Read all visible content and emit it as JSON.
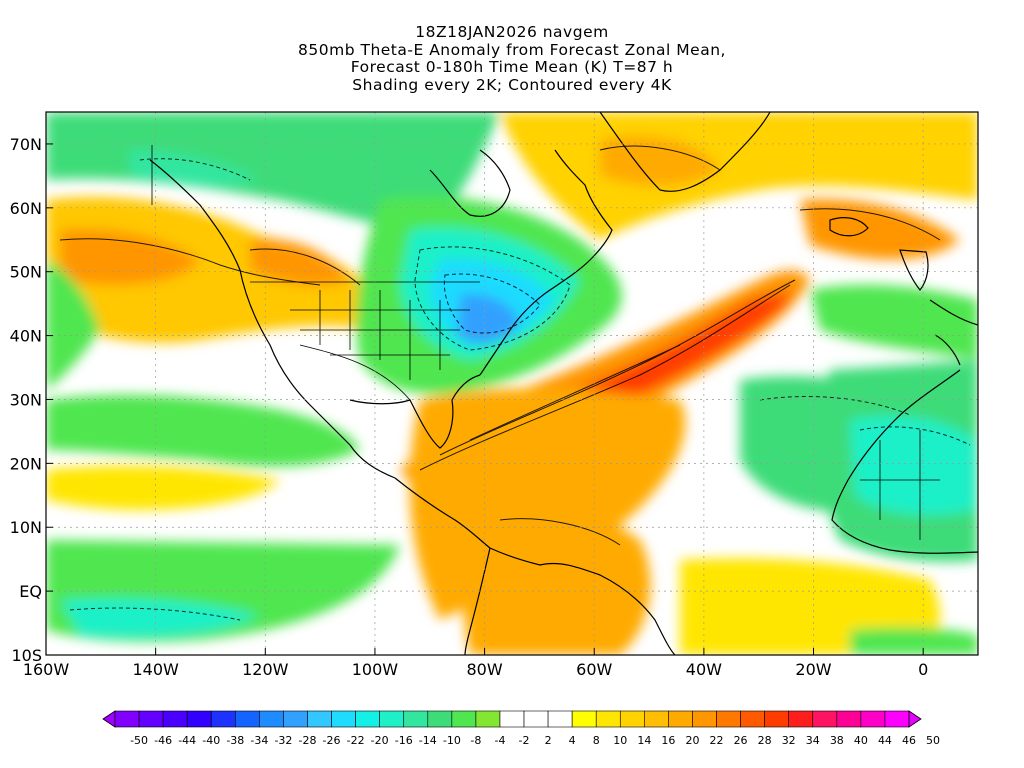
{
  "titles": {
    "line1": "18Z18JAN2026 navgem",
    "line2": "850mb Theta-E Anomaly from Forecast Zonal Mean,",
    "line3": "Forecast 0-180h Time Mean (K) T=87 h",
    "line4": "Shading every 2K; Contoured every 4K"
  },
  "map": {
    "lon_range": [
      -160,
      10
    ],
    "lat_range": [
      -10,
      75
    ],
    "lon_ticks": [
      {
        "value": -160,
        "label": "160W"
      },
      {
        "value": -140,
        "label": "140W"
      },
      {
        "value": -120,
        "label": "120W"
      },
      {
        "value": -100,
        "label": "100W"
      },
      {
        "value": -80,
        "label": "80W"
      },
      {
        "value": -60,
        "label": "60W"
      },
      {
        "value": -40,
        "label": "40W"
      },
      {
        "value": -20,
        "label": "20W"
      },
      {
        "value": 0,
        "label": "0"
      }
    ],
    "lat_ticks": [
      {
        "value": 70,
        "label": "70N"
      },
      {
        "value": 60,
        "label": "60N"
      },
      {
        "value": 50,
        "label": "50N"
      },
      {
        "value": 40,
        "label": "40N"
      },
      {
        "value": 30,
        "label": "30N"
      },
      {
        "value": 20,
        "label": "20N"
      },
      {
        "value": 10,
        "label": "10N"
      },
      {
        "value": 0,
        "label": "EQ"
      },
      {
        "value": -10,
        "label": "10S"
      }
    ]
  },
  "colorbar": {
    "labels": [
      "-50",
      "-46",
      "-44",
      "-40",
      "-38",
      "-34",
      "-32",
      "-28",
      "-26",
      "-22",
      "-20",
      "-16",
      "-14",
      "-10",
      "-8",
      "-4",
      "-2",
      "2",
      "4",
      "8",
      "10",
      "14",
      "16",
      "20",
      "22",
      "26",
      "28",
      "32",
      "34",
      "38",
      "40",
      "44",
      "46",
      "50"
    ],
    "colors": [
      "#a000ff",
      "#8200ff",
      "#6400ff",
      "#4b00ff",
      "#3200ff",
      "#1e32ff",
      "#1464ff",
      "#1e8cff",
      "#32a0ff",
      "#32c8ff",
      "#1edcff",
      "#14f0e6",
      "#1ef0c8",
      "#32e6a0",
      "#3cdc78",
      "#50e650",
      "#82e632",
      "#ffffff",
      "#ffffff",
      "#ffffff",
      "#ffff00",
      "#ffe600",
      "#ffd200",
      "#ffbe00",
      "#ffaa00",
      "#ff9600",
      "#ff7800",
      "#ff5a00",
      "#ff3c00",
      "#ff1e1e",
      "#ff1464",
      "#ff0096",
      "#ff00c8",
      "#ff00ff",
      "#e600ff"
    ]
  }
}
